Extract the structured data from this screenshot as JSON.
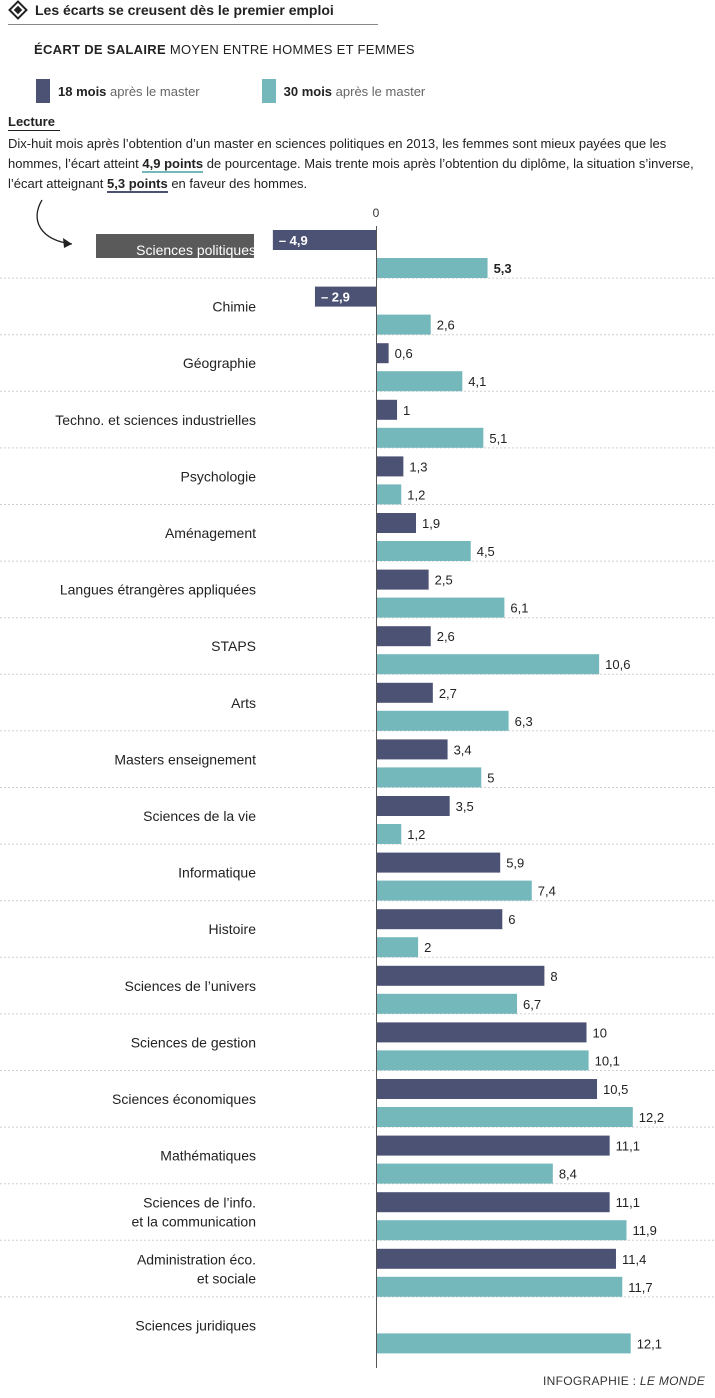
{
  "header": {
    "title": "Les écarts se creusent dès le premier emploi",
    "subtitle_bold": "ÉCART DE SALAIRE",
    "subtitle_rest": " MOYEN ENTRE HOMMES ET FEMMES"
  },
  "legend": [
    {
      "strong": "18 mois",
      "rest": " après le master",
      "color": "#4c5274"
    },
    {
      "strong": "30 mois",
      "rest": " après le master",
      "color": "#75b8bc"
    }
  ],
  "lecture": {
    "title": "Lecture",
    "p1": "Dix-huit mois après l’obtention d’un master en sciences politiques en 2013, les femmes sont mieux payées que les hommes, l’écart atteint ",
    "h1": "4,9 points",
    "p2": " de pourcentage. Mais trente mois après l’obtention du diplôme, la situation s’inverse, l’écart atteignant ",
    "h2": "5,3 points",
    "p3": " en faveur des hommes."
  },
  "credit": {
    "prefix": "INFOGRAPHIE : ",
    "brand": "LE MONDE"
  },
  "chart_data": {
    "type": "bar",
    "orientation": "horizontal",
    "zero_label": "0",
    "colors": {
      "18 mois": "#4c5274",
      "30 mois": "#75b8bc"
    },
    "highlight_category": "Sciences politiques",
    "categories": [
      [
        "Sciences politiques"
      ],
      [
        "Chimie"
      ],
      [
        "Géographie"
      ],
      [
        "Techno. et sciences industrielles"
      ],
      [
        "Psychologie"
      ],
      [
        "Aménagement"
      ],
      [
        "Langues étrangères appliquées"
      ],
      [
        "STAPS"
      ],
      [
        "Arts"
      ],
      [
        "Masters enseignement"
      ],
      [
        "Sciences de la vie"
      ],
      [
        "Informatique"
      ],
      [
        "Histoire"
      ],
      [
        "Sciences de l’univers"
      ],
      [
        "Sciences de gestion"
      ],
      [
        "Sciences économiques"
      ],
      [
        "Mathématiques"
      ],
      [
        "Sciences de l’info.",
        "et la communication"
      ],
      [
        "Administration éco.",
        "et sociale"
      ],
      [
        "Sciences juridiques"
      ]
    ],
    "series": [
      {
        "name": "18 mois après le master",
        "values": [
          -4.9,
          -2.9,
          0.6,
          1,
          1.3,
          1.9,
          2.5,
          2.6,
          2.7,
          3.4,
          3.5,
          5.9,
          6,
          8,
          10,
          10.5,
          11.1,
          11.1,
          11.4,
          null
        ],
        "labels": [
          "– 4,9",
          "– 2,9",
          "0,6",
          "1",
          "1,3",
          "1,9",
          "2,5",
          "2,6",
          "2,7",
          "3,4",
          "3,5",
          "5,9",
          "6",
          "8",
          "10",
          "10,5",
          "11,1",
          "11,1",
          "11,4",
          ""
        ]
      },
      {
        "name": "30 mois après le master",
        "values": [
          5.3,
          2.6,
          4.1,
          5.1,
          1.2,
          4.5,
          6.1,
          10.6,
          6.3,
          5,
          1.2,
          7.4,
          2,
          6.7,
          10.1,
          12.2,
          8.4,
          11.9,
          11.7,
          12.1
        ],
        "labels": [
          "5,3",
          "2,6",
          "4,1",
          "5,1",
          "1,2",
          "4,5",
          "6,1",
          "10,6",
          "6,3",
          "5",
          "1,2",
          "7,4",
          "2",
          "6,7",
          "10,1",
          "12,2",
          "8,4",
          "11,9",
          "11,7",
          "12,1"
        ]
      }
    ]
  }
}
